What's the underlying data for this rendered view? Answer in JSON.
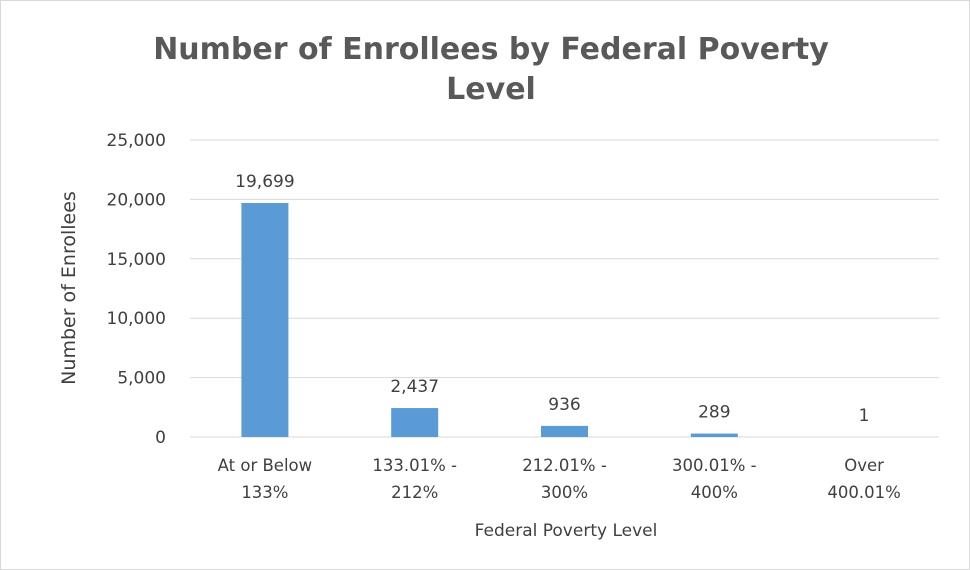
{
  "chart_data": {
    "type": "bar",
    "title": "Number of Enrollees by Federal Poverty Level",
    "title_lines": [
      "Number of Enrollees by Federal Poverty",
      "Level"
    ],
    "categories": [
      "At or Below 133%",
      "133.01% - 212%",
      "212.01% - 300%",
      "300.01% - 400%",
      "Over 400.01%"
    ],
    "category_lines": [
      [
        "At or Below",
        "133%"
      ],
      [
        "133.01% -",
        "212%"
      ],
      [
        "212.01% -",
        "300%"
      ],
      [
        "300.01% -",
        "400%"
      ],
      [
        "Over",
        "400.01%"
      ]
    ],
    "values": [
      19699,
      2437,
      936,
      289,
      1
    ],
    "data_labels": [
      "19,699",
      "2,437",
      "936",
      "289",
      "1"
    ],
    "xlabel": "Federal Poverty Level",
    "ylabel": "Number of Enrollees",
    "ylim": [
      0,
      25000
    ],
    "yticks": [
      0,
      5000,
      10000,
      15000,
      20000,
      25000
    ],
    "ytick_labels": [
      "0",
      "5,000",
      "10,000",
      "15,000",
      "20,000",
      "25,000"
    ],
    "grid": true,
    "legend": "none",
    "bar_color": "#5b9bd5",
    "grid_color": "#d9d9d9"
  }
}
